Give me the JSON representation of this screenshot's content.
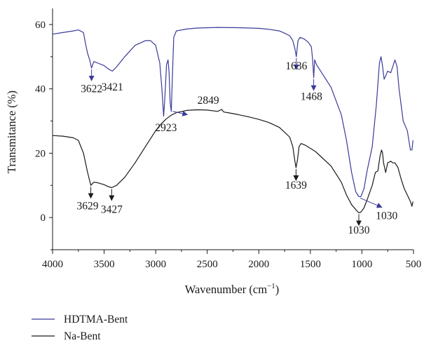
{
  "chart_data": {
    "type": "line",
    "xlabel": "Wavenumber (cm",
    "xlabel_sup": "−1",
    "xlabel_end": ")",
    "ylabel": "Transmitance (%)",
    "xlim": [
      4000,
      500
    ],
    "ylim": [
      -10,
      65
    ],
    "x_ticks": [
      4000,
      3500,
      3000,
      2500,
      2000,
      1500,
      1000,
      500
    ],
    "y_ticks": [
      0,
      20,
      40,
      60
    ],
    "x_tick_labels": [
      "4000",
      "3500",
      "3000",
      "2500",
      "2000",
      "1500",
      "1000",
      "500"
    ],
    "y_tick_labels": [
      "0",
      "20",
      "40",
      "60"
    ],
    "legend_placement": "bottom-left, below plot",
    "series": [
      {
        "name": "HDTMA-Bent",
        "color": "#3a3a9a",
        "points": [
          [
            4000,
            57.0
          ],
          [
            3900,
            57.5
          ],
          [
            3800,
            58.0
          ],
          [
            3750,
            58.3
          ],
          [
            3700,
            57.5
          ],
          [
            3680,
            54.0
          ],
          [
            3660,
            51.0
          ],
          [
            3640,
            49.0
          ],
          [
            3622,
            46.5
          ],
          [
            3600,
            48.5
          ],
          [
            3560,
            48.0
          ],
          [
            3500,
            47.2
          ],
          [
            3460,
            46.2
          ],
          [
            3421,
            45.5
          ],
          [
            3380,
            46.8
          ],
          [
            3300,
            50.0
          ],
          [
            3200,
            53.5
          ],
          [
            3100,
            55.0
          ],
          [
            3050,
            55.0
          ],
          [
            3000,
            53.5
          ],
          [
            2960,
            48.0
          ],
          [
            2940,
            40.0
          ],
          [
            2923,
            31.5
          ],
          [
            2910,
            38.0
          ],
          [
            2895,
            47.5
          ],
          [
            2880,
            49.0
          ],
          [
            2870,
            45.0
          ],
          [
            2860,
            36.0
          ],
          [
            2849,
            33.0
          ],
          [
            2840,
            42.0
          ],
          [
            2825,
            56.0
          ],
          [
            2800,
            58.0
          ],
          [
            2700,
            58.6
          ],
          [
            2600,
            58.9
          ],
          [
            2400,
            59.1
          ],
          [
            2200,
            59.0
          ],
          [
            2000,
            58.8
          ],
          [
            1900,
            58.5
          ],
          [
            1800,
            58.0
          ],
          [
            1750,
            57.3
          ],
          [
            1700,
            56.5
          ],
          [
            1670,
            55.0
          ],
          [
            1650,
            52.5
          ],
          [
            1636,
            50.0
          ],
          [
            1620,
            55.0
          ],
          [
            1600,
            56.0
          ],
          [
            1560,
            55.5
          ],
          [
            1520,
            54.5
          ],
          [
            1490,
            53.0
          ],
          [
            1478,
            49.0
          ],
          [
            1468,
            43.5
          ],
          [
            1458,
            49.0
          ],
          [
            1440,
            47.5
          ],
          [
            1400,
            45.5
          ],
          [
            1300,
            40.5
          ],
          [
            1200,
            32.0
          ],
          [
            1150,
            24.0
          ],
          [
            1100,
            14.0
          ],
          [
            1060,
            8.0
          ],
          [
            1040,
            7.0
          ],
          [
            1030,
            6.5
          ],
          [
            1010,
            6.5
          ],
          [
            980,
            9.0
          ],
          [
            950,
            14.5
          ],
          [
            900,
            22.0
          ],
          [
            860,
            35.0
          ],
          [
            830,
            48.0
          ],
          [
            815,
            50.0
          ],
          [
            800,
            47.0
          ],
          [
            785,
            43.0
          ],
          [
            770,
            44.0
          ],
          [
            750,
            45.5
          ],
          [
            720,
            45.0
          ],
          [
            700,
            47.0
          ],
          [
            680,
            49.0
          ],
          [
            660,
            47.0
          ],
          [
            640,
            40.0
          ],
          [
            600,
            30.0
          ],
          [
            560,
            27.0
          ],
          [
            530,
            21.0
          ],
          [
            515,
            21.0
          ],
          [
            505,
            24.0
          ]
        ]
      },
      {
        "name": "Na-Bent",
        "color": "#1a1a1a",
        "points": [
          [
            4000,
            25.5
          ],
          [
            3900,
            25.3
          ],
          [
            3800,
            24.8
          ],
          [
            3750,
            24.0
          ],
          [
            3700,
            20.0
          ],
          [
            3660,
            14.0
          ],
          [
            3629,
            10.0
          ],
          [
            3600,
            11.0
          ],
          [
            3560,
            10.8
          ],
          [
            3500,
            10.2
          ],
          [
            3460,
            9.6
          ],
          [
            3427,
            9.3
          ],
          [
            3380,
            10.0
          ],
          [
            3300,
            12.5
          ],
          [
            3200,
            17.0
          ],
          [
            3100,
            22.0
          ],
          [
            3000,
            27.0
          ],
          [
            2950,
            29.0
          ],
          [
            2900,
            30.6
          ],
          [
            2850,
            31.8
          ],
          [
            2800,
            32.6
          ],
          [
            2700,
            33.3
          ],
          [
            2600,
            33.5
          ],
          [
            2500,
            33.4
          ],
          [
            2400,
            33.0
          ],
          [
            2360,
            33.6
          ],
          [
            2340,
            32.8
          ],
          [
            2300,
            32.6
          ],
          [
            2200,
            32.0
          ],
          [
            2100,
            31.3
          ],
          [
            2000,
            30.5
          ],
          [
            1900,
            29.5
          ],
          [
            1800,
            28.0
          ],
          [
            1750,
            26.5
          ],
          [
            1700,
            25.0
          ],
          [
            1670,
            22.0
          ],
          [
            1650,
            17.5
          ],
          [
            1639,
            15.5
          ],
          [
            1625,
            18.0
          ],
          [
            1610,
            22.0
          ],
          [
            1590,
            23.0
          ],
          [
            1550,
            22.5
          ],
          [
            1500,
            21.5
          ],
          [
            1450,
            20.5
          ],
          [
            1400,
            19.0
          ],
          [
            1300,
            16.0
          ],
          [
            1200,
            11.0
          ],
          [
            1150,
            7.0
          ],
          [
            1100,
            4.0
          ],
          [
            1060,
            2.5
          ],
          [
            1040,
            1.8
          ],
          [
            1030,
            1.5
          ],
          [
            1010,
            1.7
          ],
          [
            980,
            3.0
          ],
          [
            950,
            5.5
          ],
          [
            900,
            10.0
          ],
          [
            870,
            14.0
          ],
          [
            845,
            14.5
          ],
          [
            825,
            19.0
          ],
          [
            810,
            21.0
          ],
          [
            800,
            20.0
          ],
          [
            790,
            17.0
          ],
          [
            770,
            14.0
          ],
          [
            750,
            17.0
          ],
          [
            720,
            17.5
          ],
          [
            700,
            17.0
          ],
          [
            680,
            17.0
          ],
          [
            650,
            15.5
          ],
          [
            620,
            12.0
          ],
          [
            590,
            9.0
          ],
          [
            560,
            7.0
          ],
          [
            530,
            5.0
          ],
          [
            515,
            3.5
          ],
          [
            505,
            5.0
          ]
        ]
      }
    ],
    "annotations": [
      {
        "series": 0,
        "label": "3622",
        "x": 3622,
        "y": 46.5,
        "arrow": "down",
        "text_x": 3622,
        "text_y": 39.0
      },
      {
        "series": 0,
        "label": "3421",
        "x": 3421,
        "y": 45.5,
        "arrow": "none",
        "text_x": 3421,
        "text_y": 39.5
      },
      {
        "series": 0,
        "label": "2923",
        "x": 2923,
        "y": 31.5,
        "arrow": "none",
        "text_x": 2900,
        "text_y": 26.8
      },
      {
        "series": 0,
        "label": "2849",
        "x": 2849,
        "y": 33.0,
        "arrow": "right",
        "text_x": 2490,
        "text_y": 35.3
      },
      {
        "series": 0,
        "label": "1636",
        "x": 1636,
        "y": 50.0,
        "arrow": "down",
        "text_x": 1636,
        "text_y": 46.0
      },
      {
        "series": 0,
        "label": "1468",
        "x": 1468,
        "y": 43.5,
        "arrow": "down",
        "text_x": 1490,
        "text_y": 36.5
      },
      {
        "series": 0,
        "label": "1030",
        "x": 1030,
        "y": 6.5,
        "arrow": "diag",
        "text_x": 760,
        "text_y": -0.5
      },
      {
        "series": 1,
        "label": "3629",
        "x": 3629,
        "y": 10.0,
        "arrow": "down",
        "text_x": 3660,
        "text_y": 2.5
      },
      {
        "series": 1,
        "label": "3427",
        "x": 3427,
        "y": 9.3,
        "arrow": "down",
        "text_x": 3427,
        "text_y": 1.5
      },
      {
        "series": 1,
        "label": "1639",
        "x": 1639,
        "y": 15.5,
        "arrow": "down",
        "text_x": 1639,
        "text_y": 9.0
      },
      {
        "series": 1,
        "label": "1030",
        "x": 1030,
        "y": 1.5,
        "arrow": "down",
        "text_x": 1030,
        "text_y": -5.0
      }
    ]
  }
}
